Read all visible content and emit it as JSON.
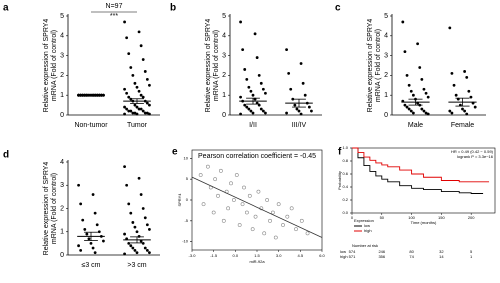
{
  "chart_data": [
    {
      "type": "dotplot",
      "panel": "a",
      "title": "N=97",
      "annotation": "***",
      "ylabel": [
        "Relative expression of SPRY4",
        "mRNA (Fold of control)"
      ],
      "categories": [
        "Non-tumor",
        "Tumor"
      ],
      "values": [
        [
          1,
          1,
          1,
          1,
          1,
          1,
          1,
          1,
          1,
          1,
          1,
          1,
          1,
          1,
          1,
          1,
          1,
          1,
          1,
          1,
          1,
          1,
          1,
          1,
          1,
          1,
          1,
          1,
          1,
          1,
          1,
          1,
          1,
          1,
          1,
          1
        ],
        [
          4.7,
          4.2,
          3.9,
          3.5,
          3.1,
          2.8,
          2.4,
          2.2,
          2.0,
          1.8,
          1.6,
          1.5,
          1.4,
          1.3,
          1.2,
          1.1,
          1.0,
          0.9,
          0.9,
          0.8,
          0.7,
          0.7,
          0.6,
          0.5,
          0.5,
          0.4,
          0.4,
          0.3,
          0.3,
          0.3,
          0.2,
          0.2,
          0.2,
          0.1,
          0.1,
          0.1,
          0.1,
          0.05,
          0.05,
          0.05
        ]
      ],
      "means": [
        1,
        0.7
      ],
      "errors": [
        0,
        0.12
      ],
      "ylim": [
        0,
        5
      ],
      "yticks": [
        0,
        1,
        2,
        3,
        4,
        5
      ],
      "color": "#000000"
    },
    {
      "type": "dotplot",
      "panel": "b",
      "ylabel": [
        "Relative expression of SPRY4",
        "mRNA (Fold of control)"
      ],
      "categories": [
        "I/II",
        "III/IV"
      ],
      "values": [
        [
          4.7,
          4.1,
          3.3,
          2.9,
          2.3,
          2.0,
          1.8,
          1.6,
          1.4,
          1.3,
          1.2,
          1.1,
          1.0,
          0.9,
          0.8,
          0.7,
          0.6,
          0.5,
          0.5,
          0.4,
          0.3,
          0.3,
          0.2,
          0.2,
          0.1,
          0.1,
          0.05
        ],
        [
          3.3,
          2.6,
          2.1,
          1.6,
          1.3,
          1.0,
          0.8,
          0.6,
          0.5,
          0.4,
          0.3,
          0.2,
          0.2,
          0.1,
          0.05
        ]
      ],
      "means": [
        0.7,
        0.6
      ],
      "errors": [
        0.15,
        0.2
      ],
      "ylim": [
        0,
        5
      ],
      "yticks": [
        0,
        1,
        2,
        3,
        4,
        5
      ],
      "color": "#000000"
    },
    {
      "type": "dotplot",
      "panel": "c",
      "ylabel": [
        "Relative expression of SPRY4",
        "mRNA ( Fold of control)"
      ],
      "categories": [
        "Male",
        "Female"
      ],
      "values": [
        [
          4.7,
          3.6,
          3.2,
          2.4,
          2.0,
          1.8,
          1.5,
          1.3,
          1.2,
          1.1,
          1.0,
          0.9,
          0.8,
          0.7,
          0.6,
          0.5,
          0.5,
          0.4,
          0.3,
          0.3,
          0.2,
          0.2,
          0.1,
          0.1,
          0.05
        ],
        [
          4.4,
          2.2,
          2.1,
          1.9,
          1.5,
          1.2,
          1.0,
          0.9,
          0.8,
          0.6,
          0.5,
          0.4,
          0.3,
          0.2,
          0.2,
          0.1,
          0.05
        ]
      ],
      "means": [
        0.65,
        0.65
      ],
      "errors": [
        0.15,
        0.2
      ],
      "ylim": [
        0,
        5
      ],
      "yticks": [
        0,
        1,
        2,
        3,
        4,
        5
      ],
      "color": "#000000"
    },
    {
      "type": "dotplot",
      "panel": "d",
      "ylabel": [
        "Relative expression of SPRY4",
        "mRNA (Fold of control)"
      ],
      "categories": [
        "≤3 cm",
        ">3 cm"
      ],
      "values": [
        [
          3.0,
          2.6,
          2.2,
          1.8,
          1.5,
          1.3,
          1.1,
          1.0,
          0.9,
          0.8,
          0.7,
          0.6,
          0.5,
          0.4,
          0.3,
          0.2,
          0.1
        ],
        [
          3.8,
          3.3,
          3.0,
          2.6,
          2.2,
          2.0,
          1.8,
          1.6,
          1.4,
          1.3,
          1.2,
          1.1,
          1.0,
          0.9,
          0.8,
          0.7,
          0.6,
          0.5,
          0.5,
          0.4,
          0.3,
          0.3,
          0.2,
          0.2,
          0.1,
          0.1,
          0.05
        ]
      ],
      "means": [
        0.8,
        0.65
      ],
      "errors": [
        0.18,
        0.13
      ],
      "ylim": [
        0,
        4
      ],
      "yticks": [
        0,
        1,
        2,
        3,
        4
      ],
      "color": "#000000"
    },
    {
      "type": "scatter",
      "panel": "e",
      "title": "Pearson correlation coefficient = -0.45",
      "xlabel": "miR-92a",
      "ylabel": "SPRY4",
      "x": [
        -2.4,
        -2.2,
        -1.9,
        -1.7,
        -1.5,
        -1.4,
        -1.2,
        -1.0,
        -0.8,
        -0.6,
        -0.5,
        -0.3,
        -0.1,
        0.1,
        0.3,
        0.5,
        0.6,
        0.8,
        1.0,
        1.2,
        1.4,
        1.6,
        1.8,
        2.0,
        2.2,
        2.4,
        2.6,
        2.8,
        3.0,
        3.3,
        3.6,
        3.9,
        4.2,
        4.6,
        5.0
      ],
      "y": [
        6,
        -1,
        8,
        3,
        -3,
        5,
        1,
        7,
        -5,
        2,
        -2,
        4,
        0,
        6,
        -6,
        -1,
        3,
        -3,
        1,
        -7,
        -4,
        2,
        -2,
        -8,
        0,
        -5,
        -3,
        -9,
        -1,
        -6,
        -4,
        -2,
        -7,
        -5,
        -8
      ],
      "fit": {
        "x": [
          -3,
          6
        ],
        "y": [
          5.5,
          -9
        ]
      },
      "xlim": [
        -3,
        6
      ],
      "xticks": [
        {
          "value": -3,
          "label": "-3.0"
        },
        -1.5,
        {
          "value": 0,
          "label": "0.0"
        },
        1.5,
        {
          "value": 3,
          "label": "3.0"
        },
        4.5,
        {
          "value": 6,
          "label": "6.0"
        }
      ],
      "ylim": [
        -12,
        12
      ],
      "yticks": [
        -10,
        -5,
        0,
        5,
        10
      ],
      "color": "#888888"
    },
    {
      "type": "survival",
      "panel": "f",
      "annotation": [
        "HR = 0.49 (0.42 − 0.59)",
        "logrank P = 3.3e−16"
      ],
      "xlabel": "Time (months)",
      "ylabel": "Probability",
      "legend_title": "Expression",
      "series": [
        {
          "name": "low",
          "color": "#000000",
          "x": [
            0,
            10,
            20,
            30,
            40,
            50,
            60,
            80,
            100,
            120,
            150,
            180,
            200,
            220
          ],
          "y": [
            1,
            0.85,
            0.73,
            0.64,
            0.57,
            0.52,
            0.48,
            0.42,
            0.38,
            0.36,
            0.33,
            0.31,
            0.3,
            0.3
          ]
        },
        {
          "name": "high",
          "color": "#e00000",
          "x": [
            0,
            10,
            20,
            30,
            40,
            50,
            60,
            80,
            100,
            120,
            150,
            180,
            200,
            230
          ],
          "y": [
            1,
            0.93,
            0.86,
            0.81,
            0.77,
            0.74,
            0.71,
            0.66,
            0.6,
            0.55,
            0.5,
            0.48,
            0.48,
            0.48
          ]
        }
      ],
      "xlim": [
        0,
        240
      ],
      "xticks": [
        0,
        50,
        100,
        150,
        200
      ],
      "ylim": [
        0,
        1
      ],
      "yticks": [
        {
          "value": 0,
          "label": "0.0"
        },
        0.2,
        0.4,
        0.6,
        0.8,
        {
          "value": 1,
          "label": "1.0"
        }
      ],
      "risk": {
        "title": "Number at risk",
        "rows": [
          {
            "name": "low",
            "color": "#000000",
            "values": [
              574,
              246,
              80,
              32,
              5
            ]
          },
          {
            "name": "high",
            "color": "#e00000",
            "values": [
              571,
              356,
              74,
              14,
              1
            ]
          }
        ]
      }
    }
  ]
}
